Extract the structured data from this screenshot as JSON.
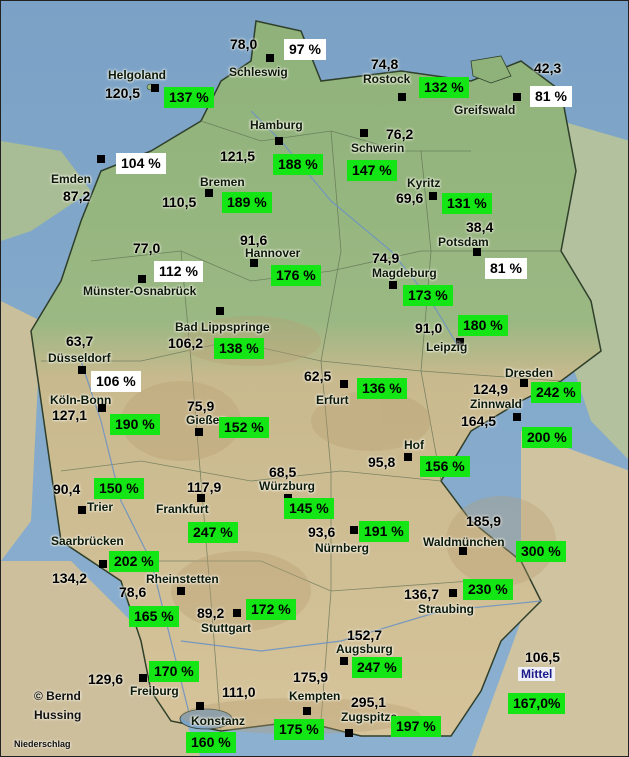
{
  "colors": {
    "above": "#14e514",
    "below": "#ffffff"
  },
  "map_label": "Niederschlag",
  "credit_line1": "© Bernd",
  "credit_line2": "Hussing",
  "mean": {
    "label": "Mittel",
    "value": "106,5",
    "pct": "167,0%"
  },
  "stations": [
    {
      "id": "schleswig",
      "name": "Schleswig",
      "value": "78,0",
      "pct": "97 %",
      "status": "below"
    },
    {
      "id": "helgoland",
      "name": "Helgoland",
      "value": "120,5",
      "pct": "137 %",
      "status": "above"
    },
    {
      "id": "rostock",
      "name": "Rostock",
      "value": "74,8",
      "pct": "132 %",
      "status": "above"
    },
    {
      "id": "greifswald",
      "name": "Greifswald",
      "value": "42,3",
      "pct": "81 %",
      "status": "below"
    },
    {
      "id": "hamburg",
      "name": "Hamburg",
      "value": "121,5",
      "pct": "188 %",
      "status": "above"
    },
    {
      "id": "schwerin",
      "name": "Schwerin",
      "value": "76,2",
      "pct": "147 %",
      "status": "above"
    },
    {
      "id": "emden",
      "name": "Emden",
      "value": "87,2",
      "pct": "104 %",
      "status": "below"
    },
    {
      "id": "bremen",
      "name": "Bremen",
      "value": "110,5",
      "pct": "189 %",
      "status": "above"
    },
    {
      "id": "kyritz",
      "name": "Kyritz",
      "value": "69,6",
      "pct": "131 %",
      "status": "above"
    },
    {
      "id": "potsdam",
      "name": "Potsdam",
      "value": "38,4",
      "pct": "81 %",
      "status": "below"
    },
    {
      "id": "muenster",
      "name": "Münster-Osnabrück",
      "value": "77,0",
      "pct": "112 %",
      "status": "below"
    },
    {
      "id": "hannover",
      "name": "Hannover",
      "value": "91,6",
      "pct": "176 %",
      "status": "above"
    },
    {
      "id": "magdeburg",
      "name": "Magdeburg",
      "value": "74,9",
      "pct": "173 %",
      "status": "above"
    },
    {
      "id": "lippspringe",
      "name": "Bad Lippspringe",
      "value": "106,2",
      "pct": "138 %",
      "status": "above"
    },
    {
      "id": "leipzig",
      "name": "Leipzig",
      "value": "91,0",
      "pct": "180 %",
      "status": "above"
    },
    {
      "id": "duesseldorf",
      "name": "Düsseldorf",
      "value": "63,7",
      "pct": "106 %",
      "status": "below"
    },
    {
      "id": "erfurt",
      "name": "Erfurt",
      "value": "62,5",
      "pct": "136 %",
      "status": "above"
    },
    {
      "id": "dresden",
      "name": "Dresden",
      "value": "124,9",
      "pct": "242 %",
      "status": "above"
    },
    {
      "id": "zinnwald",
      "name": "Zinnwald",
      "value": "164,5",
      "pct": "200 %",
      "status": "above"
    },
    {
      "id": "koeln",
      "name": "Köln-Bonn",
      "value": "127,1",
      "pct": "190 %",
      "status": "above"
    },
    {
      "id": "giessen",
      "name": "Gießen",
      "value": "75,9",
      "pct": "152 %",
      "status": "above"
    },
    {
      "id": "hof",
      "name": "Hof",
      "value": "95,8",
      "pct": "156 %",
      "status": "above"
    },
    {
      "id": "trier",
      "name": "Trier",
      "value": "90,4",
      "pct": "150 %",
      "status": "above"
    },
    {
      "id": "frankfurt",
      "name": "Frankfurt",
      "value": "117,9",
      "pct": "247 %",
      "status": "above"
    },
    {
      "id": "wuerzburg",
      "name": "Würzburg",
      "value": "68,5",
      "pct": "145 %",
      "status": "above"
    },
    {
      "id": "nuernberg",
      "name": "Nürnberg",
      "value": "93,6",
      "pct": "191 %",
      "status": "above"
    },
    {
      "id": "waldmuenchen",
      "name": "Waldmünchen",
      "value": "185,9",
      "pct": "300 %",
      "status": "above"
    },
    {
      "id": "saarbruecken",
      "name": "Saarbrücken",
      "value": "134,2",
      "pct": "202 %",
      "status": "above"
    },
    {
      "id": "rheinstetten",
      "name": "Rheinstetten",
      "value": "78,6",
      "pct": "165 %",
      "status": "above"
    },
    {
      "id": "stuttgart",
      "name": "Stuttgart",
      "value": "89,2",
      "pct": "172 %",
      "status": "above"
    },
    {
      "id": "straubing",
      "name": "Straubing",
      "value": "136,7",
      "pct": "230 %",
      "status": "above"
    },
    {
      "id": "augsburg",
      "name": "Augsburg",
      "value": "152,7",
      "pct": "247 %",
      "status": "above"
    },
    {
      "id": "freiburg",
      "name": "Freiburg",
      "value": "129,6",
      "pct": "170 %",
      "status": "above"
    },
    {
      "id": "kempten",
      "name": "Kempten",
      "value": "175,9",
      "pct": "175 %",
      "status": "above"
    },
    {
      "id": "zugspitze",
      "name": "Zugspitze",
      "value": "295,1",
      "pct": "197 %",
      "status": "above"
    },
    {
      "id": "konstanz",
      "name": "Konstanz",
      "value": "111,0",
      "pct": "160 %",
      "status": "above"
    }
  ]
}
